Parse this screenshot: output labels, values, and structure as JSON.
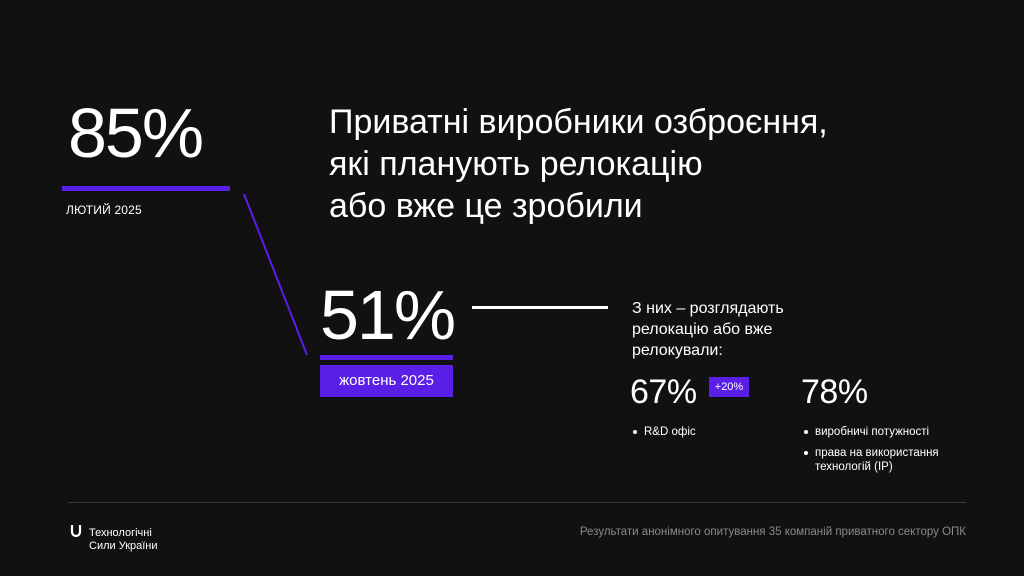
{
  "stat_feb": {
    "value": "85%",
    "date": "ЛЮТИЙ 2025"
  },
  "heading": {
    "line1": "Приватні виробники озброєння,",
    "line2": "які планують релокацію",
    "line3": "або вже це зробили"
  },
  "stat_oct": {
    "value": "51%",
    "date": "жовтень 2025"
  },
  "breakdown": {
    "intro": "З них – розглядають релокацію або вже релокували:",
    "rd": {
      "value": "67%",
      "delta": "+20%",
      "items": [
        "R&D офіс"
      ]
    },
    "production": {
      "value": "78%",
      "items": [
        "виробничі потужності",
        "права на використання технологій (IP)"
      ]
    }
  },
  "footer": {
    "logo_line1": "Технологічні",
    "logo_line2": "Сили України",
    "note": "Результати анонімного опитування 35 компаній приватного сектору ОПК"
  },
  "colors": {
    "background": "#111111",
    "accent": "#5a1fe6",
    "text": "#ffffff",
    "muted": "#8a8a8a"
  }
}
